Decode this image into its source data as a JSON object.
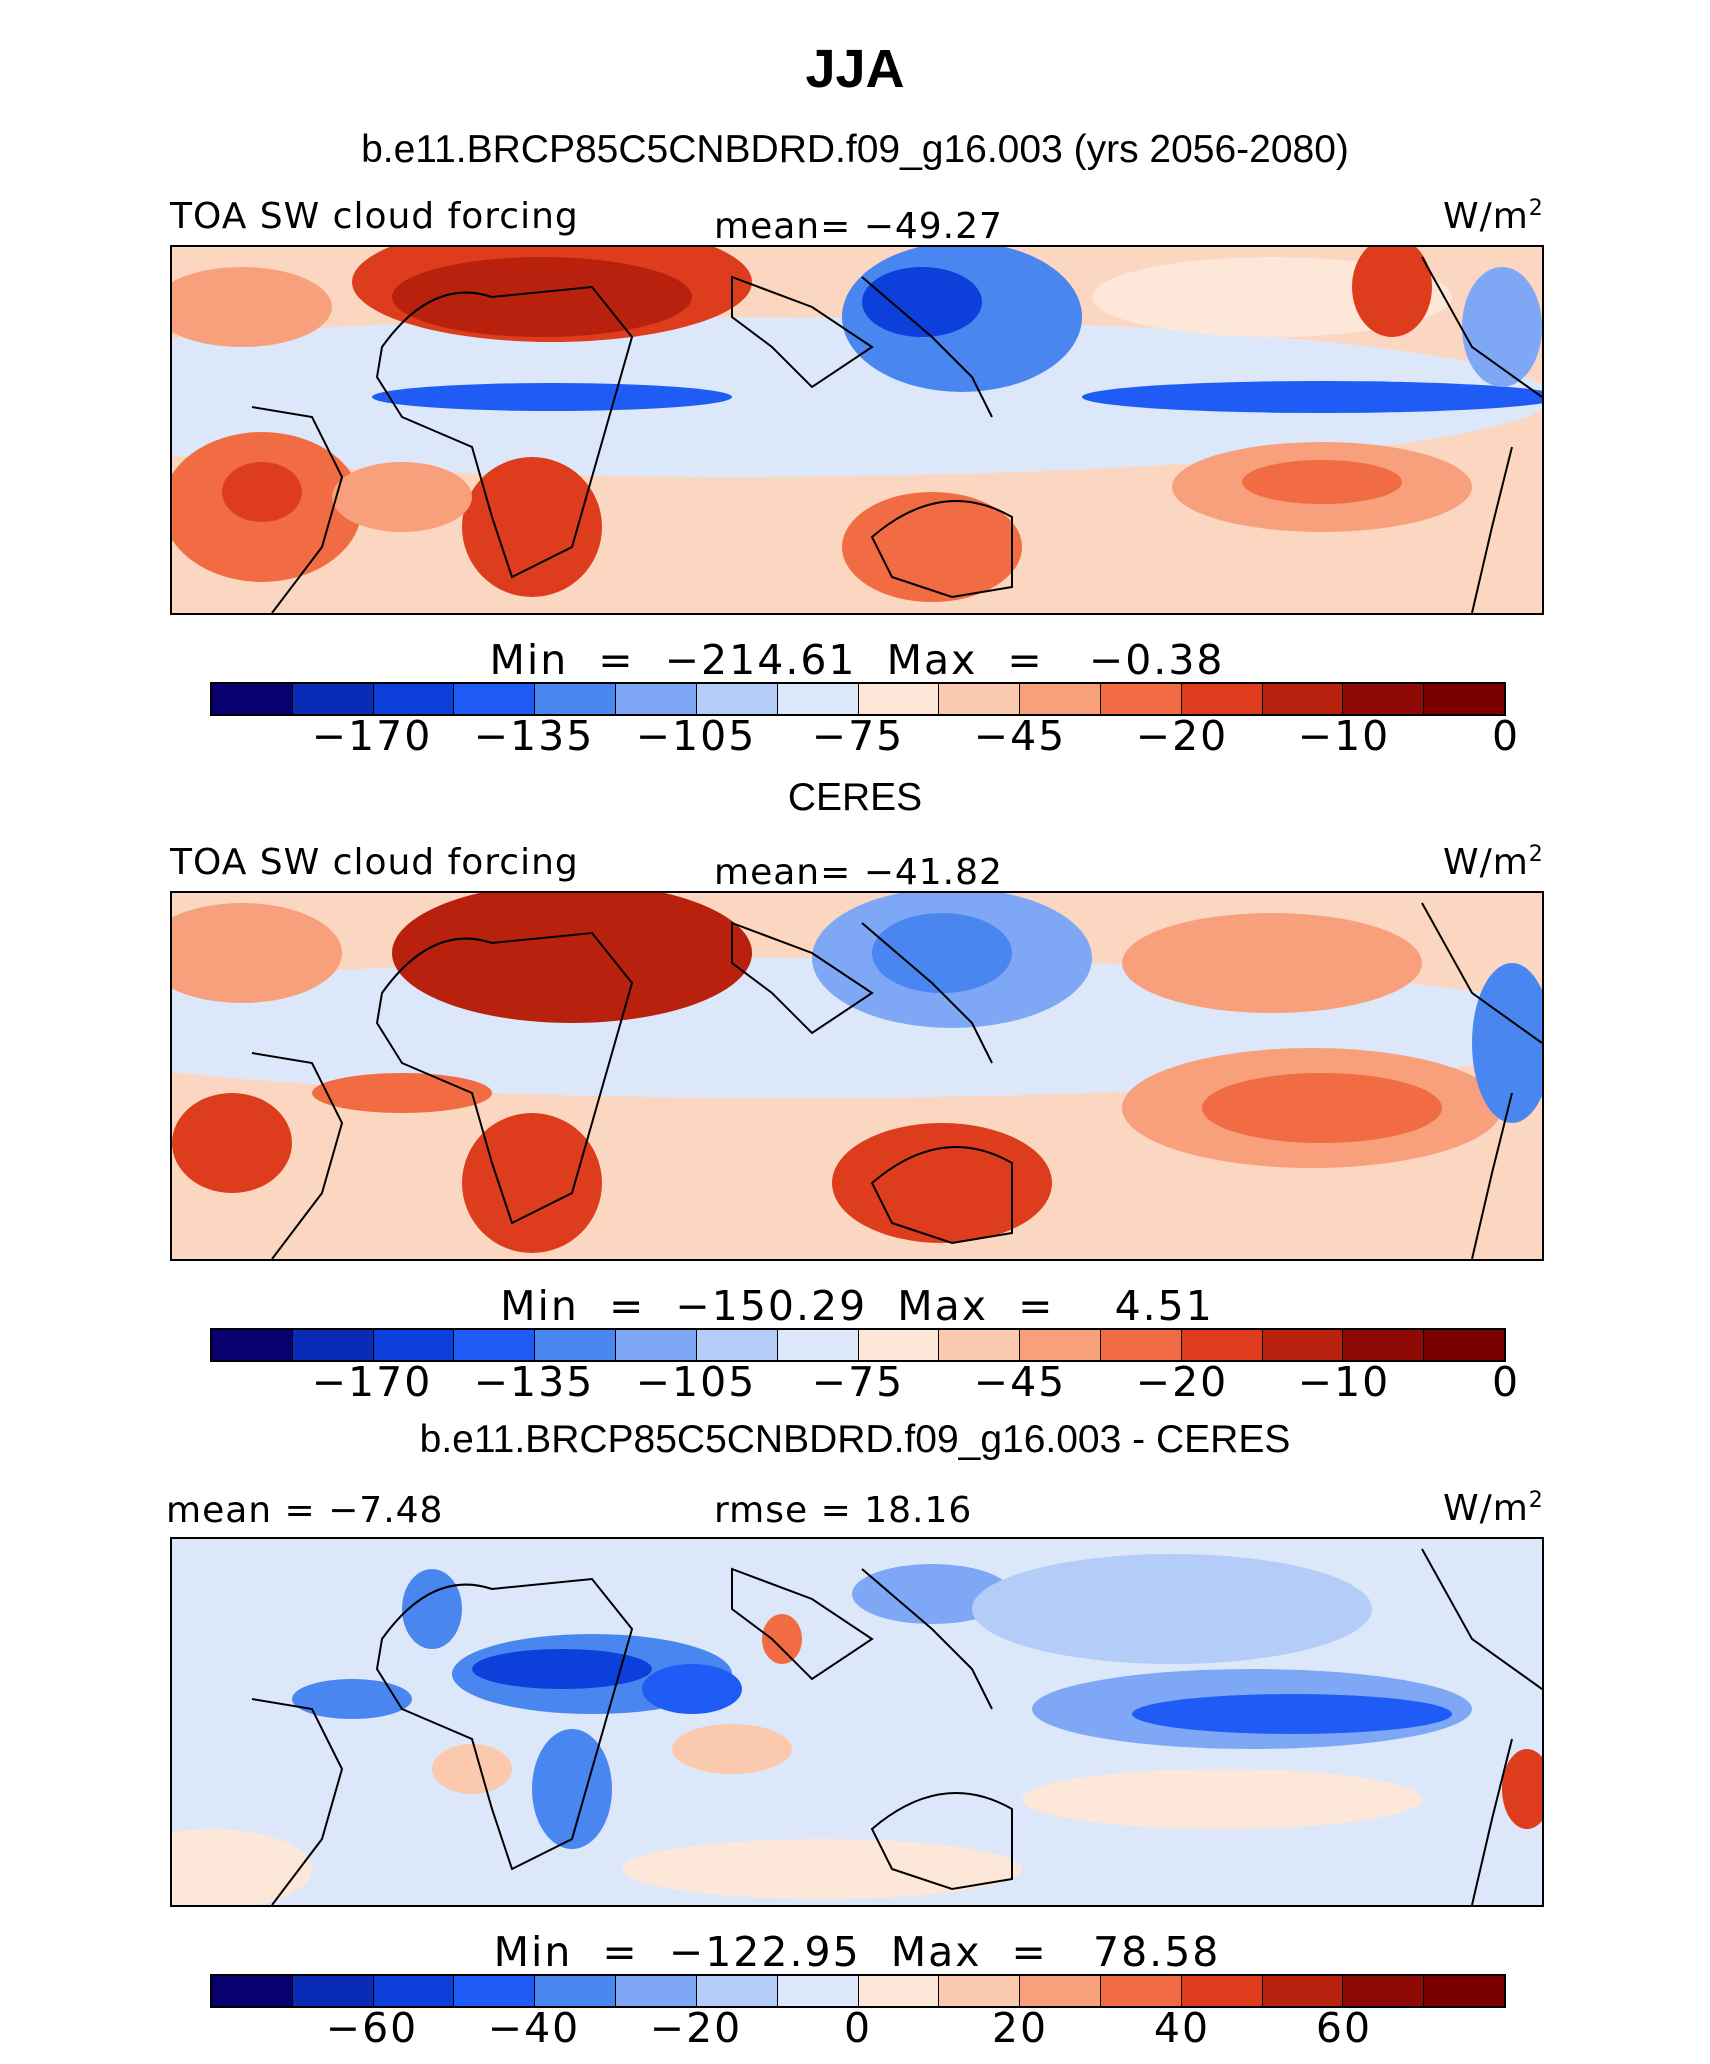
{
  "title": "JJA",
  "panels": [
    {
      "subtitle": "b.e11.BRCP85C5CNBDRD.f09_g16.003 (yrs 2056-2080)",
      "left_label": "TOA SW cloud forcing",
      "center_label": "mean= −49.27",
      "units": "W/m",
      "units_sup": "2",
      "minmax": "Min  =  −214.61  Max  =   −0.38",
      "colorbar_ticks": [
        "−170",
        "−135",
        "−105",
        "−75",
        "−45",
        "−20",
        "−10",
        "0"
      ]
    },
    {
      "subtitle": "CERES",
      "left_label": "TOA SW cloud forcing",
      "center_label": "mean= −41.82",
      "units": "W/m",
      "units_sup": "2",
      "minmax": "Min  =  −150.29  Max  =    4.51",
      "colorbar_ticks": [
        "−170",
        "−135",
        "−105",
        "−75",
        "−45",
        "−20",
        "−10",
        "0"
      ]
    },
    {
      "subtitle": "b.e11.BRCP85C5CNBDRD.f09_g16.003 - CERES",
      "left_label": "mean =  −7.48",
      "center_label": "rmse =  18.16",
      "units": "W/m",
      "units_sup": "2",
      "minmax": "Min  =  −122.95  Max  =   78.58",
      "colorbar_ticks": [
        "−60",
        "−40",
        "−20",
        "0",
        "20",
        "40",
        "60"
      ]
    }
  ],
  "colorbar_colors": [
    "#08006e",
    "#0a2bb5",
    "#0d3fdb",
    "#1e5cf5",
    "#4a86f0",
    "#7ea8f5",
    "#b4cdf8",
    "#dce8fa",
    "#fde7d8",
    "#fbc9ad",
    "#f8a07c",
    "#f26c43",
    "#dd3d1c",
    "#b8210e",
    "#8e0a06",
    "#7a0000"
  ]
}
